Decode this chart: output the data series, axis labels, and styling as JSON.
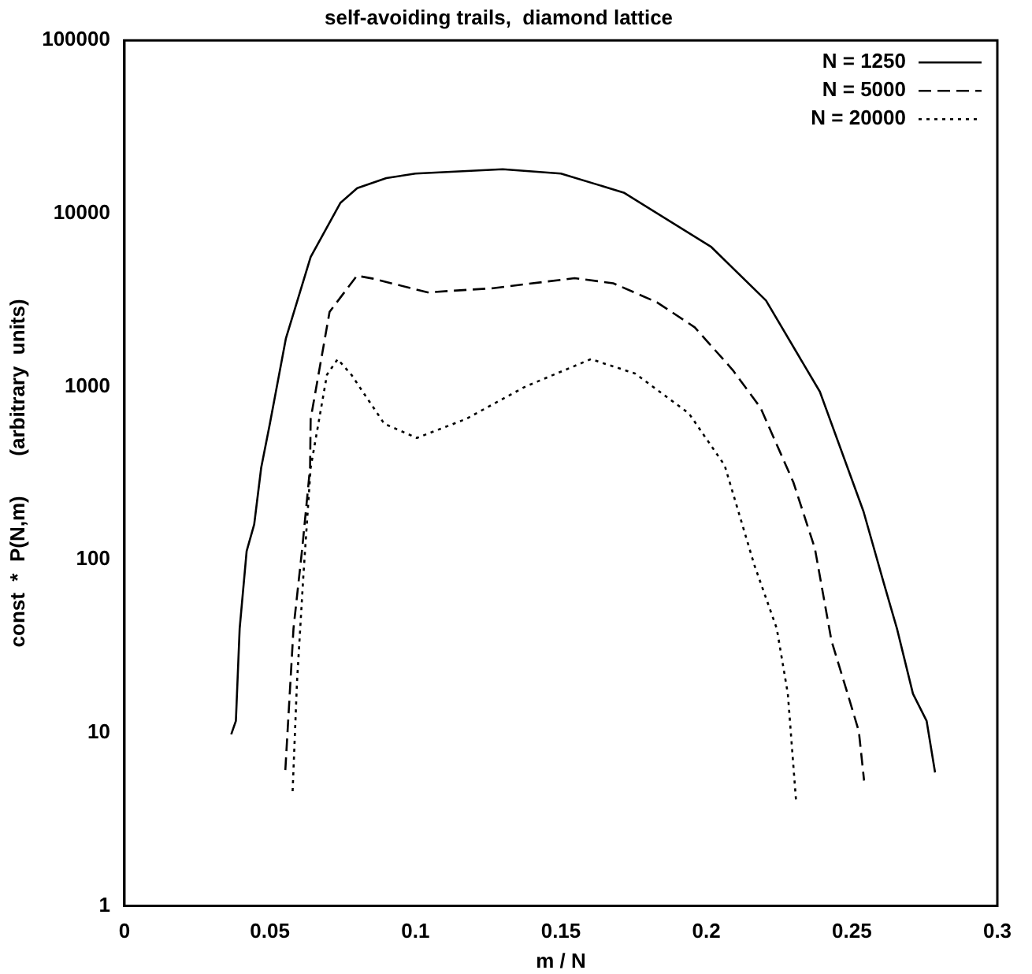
{
  "chart_data": {
    "type": "line",
    "title": "self-avoiding trails,  diamond lattice",
    "xlabel": "m / N",
    "ylabel": "const  *  P(N,m)       (arbitrary  units)",
    "xlim": [
      0,
      0.3
    ],
    "xticks": [
      0,
      0.05,
      0.1,
      0.15,
      0.2,
      0.25,
      0.3
    ],
    "ylim": [
      1,
      100000
    ],
    "yticks": [
      1,
      10,
      100,
      1000,
      10000,
      100000
    ],
    "log": "y",
    "grid": false,
    "legend": "top right",
    "marker": "none",
    "series": [
      {
        "name": "N = 1250",
        "color": "#000000",
        "line_style": "solid",
        "x": [
          0.0367,
          0.0383,
          0.0396,
          0.042,
          0.0446,
          0.047,
          0.0499,
          0.0555,
          0.064,
          0.0742,
          0.08,
          0.09,
          0.1,
          0.115,
          0.13,
          0.15,
          0.1716,
          0.2017,
          0.2205,
          0.239,
          0.254,
          0.2608,
          0.2655,
          0.271,
          0.2757,
          0.2786
        ],
        "values": [
          9.8,
          11.7,
          40,
          112,
          160,
          340,
          600,
          1900,
          5600,
          11500,
          14000,
          16000,
          17000,
          17500,
          18000,
          17000,
          13200,
          6400,
          3140,
          935,
          190,
          75,
          40,
          16.8,
          11.7,
          5.9
        ]
      },
      {
        "name": "N = 5000",
        "color": "#000000",
        "line_style": "dashed",
        "x": [
          0.0553,
          0.0581,
          0.0611,
          0.0638,
          0.064,
          0.0705,
          0.0799,
          0.0855,
          0.1042,
          0.1267,
          0.1547,
          0.168,
          0.183,
          0.196,
          0.209,
          0.2186,
          0.2299,
          0.2373,
          0.243,
          0.2486,
          0.2524,
          0.2542
        ],
        "values": [
          6.1,
          40,
          116,
          340,
          650,
          2700,
          4370,
          4200,
          3500,
          3700,
          4230,
          3950,
          3070,
          2200,
          1250,
          755,
          280,
          116,
          34,
          16.7,
          10.2,
          5.3
        ]
      },
      {
        "name": "N = 20000",
        "color": "#000000",
        "line_style": "dotted",
        "x": [
          0.0578,
          0.0593,
          0.0615,
          0.064,
          0.0696,
          0.0733,
          0.078,
          0.0893,
          0.1005,
          0.1174,
          0.1378,
          0.1603,
          0.1755,
          0.194,
          0.2063,
          0.2165,
          0.2242,
          0.228,
          0.2308
        ],
        "values": [
          4.6,
          19.5,
          81,
          340,
          1170,
          1440,
          1170,
          610,
          505,
          650,
          1000,
          1440,
          1190,
          700,
          350,
          93,
          40,
          16.8,
          4.1
        ]
      }
    ]
  }
}
